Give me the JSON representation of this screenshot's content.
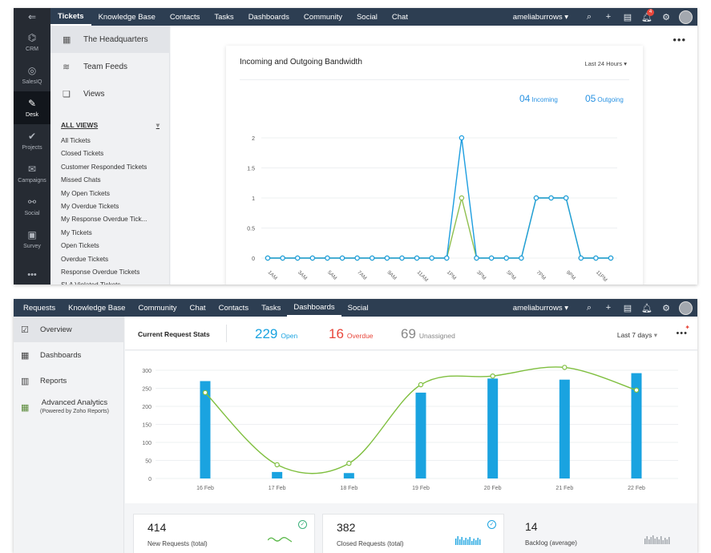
{
  "top": {
    "rail": [
      {
        "label": "CRM",
        "icon": "crm-icon"
      },
      {
        "label": "SalesIQ",
        "icon": "salesiq-icon"
      },
      {
        "label": "Desk",
        "icon": "desk-icon",
        "active": true
      },
      {
        "label": "Projects",
        "icon": "projects-icon"
      },
      {
        "label": "Campaigns",
        "icon": "campaigns-icon"
      },
      {
        "label": "Social",
        "icon": "social-icon"
      },
      {
        "label": "Survey",
        "icon": "survey-icon"
      }
    ],
    "tabs": [
      "Tickets",
      "Knowledge Base",
      "Contacts",
      "Tasks",
      "Dashboards",
      "Community",
      "Social",
      "Chat"
    ],
    "active_tab": "Tickets",
    "user": "ameliaburrows",
    "notification_count": "4",
    "sidebar_links": [
      {
        "label": "The Headquarters",
        "icon": "grid-icon"
      },
      {
        "label": "Team Feeds",
        "icon": "feed-icon"
      },
      {
        "label": "Views",
        "icon": "views-icon"
      }
    ],
    "all_views_label": "ALL VIEWS",
    "views": [
      "All Tickets",
      "Closed Tickets",
      "Customer Responded Tickets",
      "Missed Chats",
      "My Open Tickets",
      "My Overdue Tickets",
      "My Response Overdue Tick...",
      "My Tickets",
      "Open Tickets",
      "Overdue Tickets",
      "Response Overdue Tickets",
      "SLA Violated Tickets"
    ],
    "bandwidth": {
      "title": "Incoming and Outgoing Bandwidth",
      "range": "Last 24 Hours",
      "incoming_value": "04",
      "incoming_label": "Incoming",
      "outgoing_value": "05",
      "outgoing_label": "Outgoing"
    }
  },
  "bottom": {
    "tabs": [
      "Requests",
      "Knowledge Base",
      "Community",
      "Chat",
      "Contacts",
      "Tasks",
      "Dashboards",
      "Social"
    ],
    "active_tab": "Dashboards",
    "user": "ameliaburrows",
    "sidebar_links": [
      {
        "label": "Overview",
        "icon": "overview-icon",
        "active": true
      },
      {
        "label": "Dashboards",
        "icon": "dashboards-icon"
      },
      {
        "label": "Reports",
        "icon": "reports-icon"
      }
    ],
    "analytics_label": "Advanced Analytics",
    "analytics_sub": "(Powered by Zoho Reports)",
    "stats_title": "Current Request Stats",
    "open_value": "229",
    "open_label": "Open",
    "overdue_value": "16",
    "overdue_label": "Overdue",
    "unassigned_value": "69",
    "unassigned_label": "Unassigned",
    "range": "Last 7 days",
    "metrics": [
      {
        "value": "414",
        "label": "New Requests (total)"
      },
      {
        "value": "382",
        "label": "Closed Requests (total)"
      },
      {
        "value": "14",
        "label": "Backlog (average)"
      }
    ]
  },
  "colors": {
    "accent_blue": "#1aa3e0",
    "line_green": "#7fbf3f",
    "overdue_red": "#e8463a",
    "nav_bg": "#2d3e52",
    "rail_bg": "#262b33"
  },
  "chart_data": [
    {
      "type": "line",
      "title": "Incoming and Outgoing Bandwidth",
      "x": [
        "1AM",
        "",
        "3AM",
        "",
        "5AM",
        "",
        "7AM",
        "",
        "9AM",
        "",
        "11AM",
        "",
        "1PM",
        "",
        "3PM",
        "",
        "5PM",
        "",
        "7PM",
        "",
        "9PM",
        "",
        "11PM",
        ""
      ],
      "tick_labels": [
        "1AM",
        "3AM",
        "5AM",
        "7AM",
        "9AM",
        "11AM",
        "1PM",
        "3PM",
        "5PM",
        "7PM",
        "9PM",
        "11PM"
      ],
      "series": [
        {
          "values": [
            0,
            0,
            0,
            0,
            0,
            0,
            0,
            0,
            0,
            0,
            0,
            0,
            0,
            2,
            0,
            0,
            0,
            0,
            1,
            1,
            1,
            0,
            0,
            0
          ],
          "color": "#1e9ee0"
        },
        {
          "values": [
            0,
            0,
            0,
            0,
            0,
            0,
            0,
            0,
            0,
            0,
            0,
            0,
            0,
            1,
            0,
            0,
            0,
            0,
            1,
            1,
            1,
            0,
            0,
            0
          ],
          "color": "#8fbf4f"
        }
      ],
      "yticks": [
        0,
        0.5,
        1,
        1.5,
        2
      ],
      "ylim": [
        0,
        2
      ],
      "grid": true
    },
    {
      "type": "bar",
      "categories": [
        "16 Feb",
        "17 Feb",
        "18 Feb",
        "19 Feb",
        "20 Feb",
        "21 Feb",
        "22 Feb"
      ],
      "values": [
        270,
        18,
        15,
        238,
        277,
        274,
        292
      ],
      "line_values": [
        238,
        38,
        42,
        260,
        284,
        308,
        245
      ],
      "yticks": [
        0,
        50,
        100,
        150,
        200,
        250,
        300
      ],
      "ylim": [
        0,
        300
      ],
      "grid": true
    }
  ]
}
